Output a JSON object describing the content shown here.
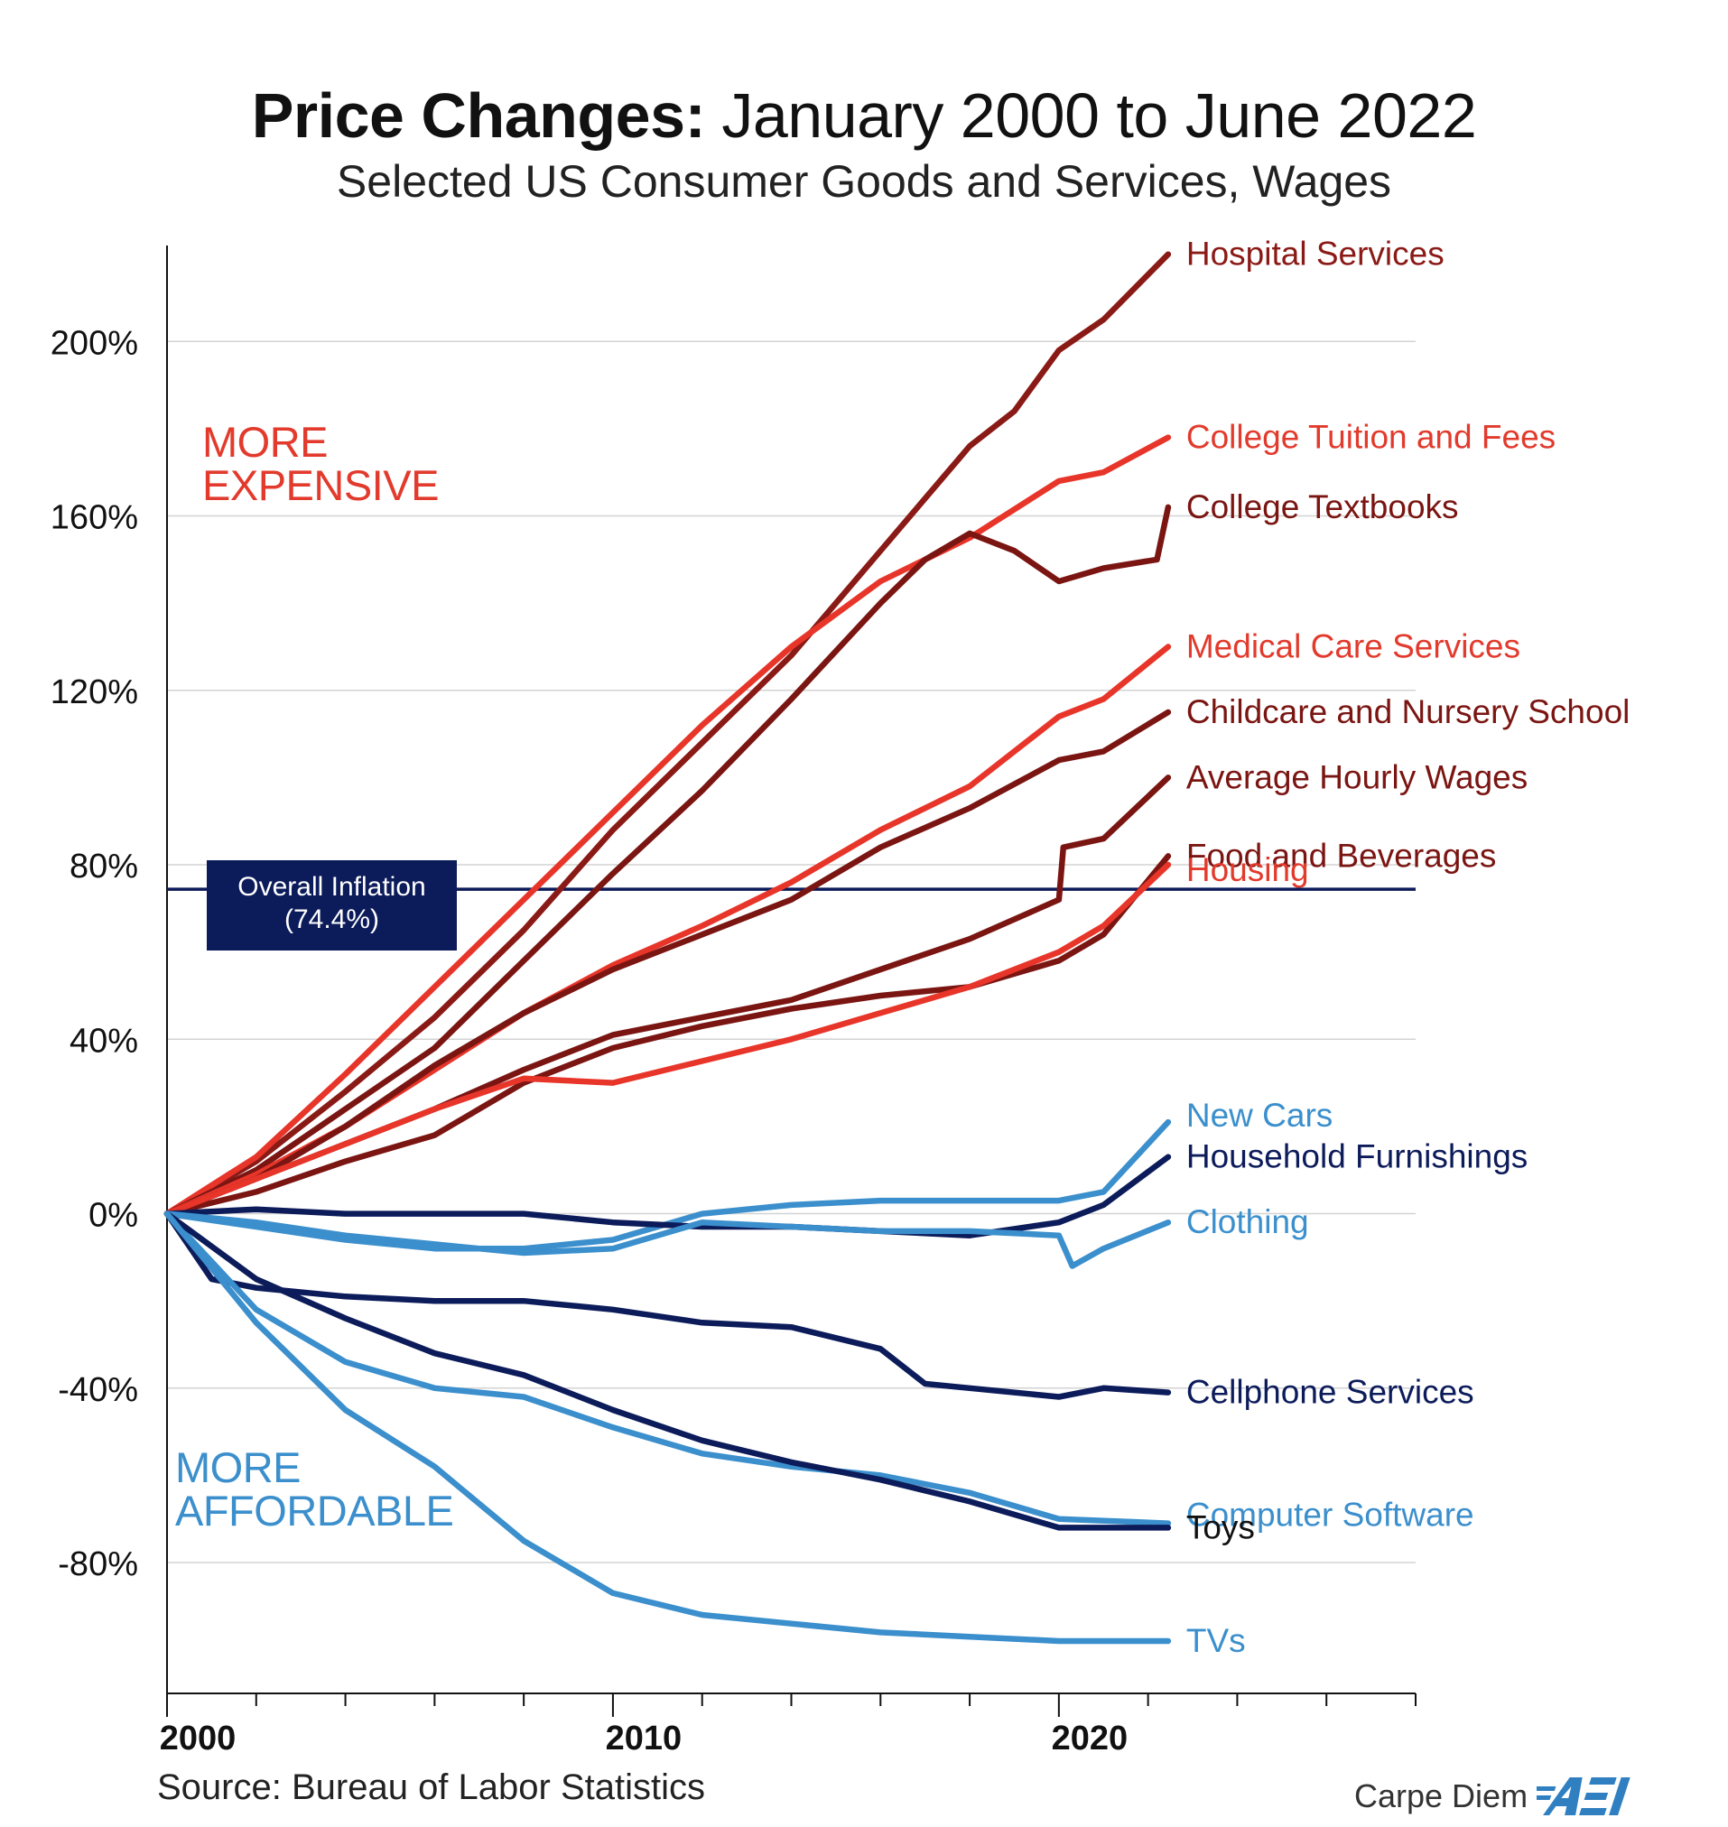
{
  "title_bold": "Price Changes:",
  "title_rest": "January 2000 to June 2022",
  "subtitle": "Selected US Consumer Goods and Services, Wages",
  "source": "Source: Bureau of Labor Statistics",
  "brand": {
    "text": "Carpe Diem",
    "logo_text": "AEI",
    "logo_color": "#2f7fc1"
  },
  "zones": {
    "expensive": [
      "MORE",
      "EXPENSIVE"
    ],
    "affordable": [
      "MORE",
      "AFFORDABLE"
    ]
  },
  "inflation_box": {
    "line1": "Overall Inflation",
    "line2": "(74.4%)",
    "color": "#0c1b5a"
  },
  "chart_data": {
    "type": "line",
    "xlim": [
      2000,
      2028
    ],
    "ylim": [
      -110,
      222
    ],
    "grid": true,
    "x_ticks": [
      2000,
      2010,
      2020
    ],
    "x_minor_ticks": [
      2002,
      2004,
      2006,
      2008,
      2012,
      2014,
      2016,
      2018,
      2022,
      2024,
      2026,
      2028
    ],
    "y_ticks": [
      {
        "value": 200,
        "label": "200%"
      },
      {
        "value": 160,
        "label": "160%"
      },
      {
        "value": 120,
        "label": "120%"
      },
      {
        "value": 80,
        "label": "80%"
      },
      {
        "value": 40,
        "label": "40%"
      },
      {
        "value": 0,
        "label": "0%"
      },
      {
        "value": -40,
        "label": "-40%"
      },
      {
        "value": -80,
        "label": "-80%"
      }
    ],
    "reference_line": {
      "value": 74.4,
      "label": "Overall Inflation (74.4%)"
    },
    "series": [
      {
        "name": "Hospital Services",
        "color": "#8a1a16",
        "label_color": "#8a1a16",
        "label_dy": 0,
        "x": [
          2000,
          2002,
          2004,
          2006,
          2008,
          2010,
          2012,
          2014,
          2016,
          2018,
          2019,
          2020,
          2021,
          2022.45
        ],
        "y": [
          0,
          12,
          28,
          45,
          65,
          88,
          108,
          128,
          152,
          176,
          184,
          198,
          205,
          220
        ]
      },
      {
        "name": "College Tuition and Fees",
        "color": "#e8352a",
        "label_color": "#e23a2c",
        "label_dy": 0,
        "x": [
          2000,
          2002,
          2004,
          2006,
          2008,
          2010,
          2012,
          2014,
          2016,
          2018,
          2020,
          2021,
          2022.45
        ],
        "y": [
          0,
          13,
          32,
          52,
          72,
          92,
          112,
          130,
          145,
          155,
          168,
          170,
          178
        ]
      },
      {
        "name": "College Textbooks",
        "color": "#7a1512",
        "label_color": "#7a1512",
        "label_dy": 0,
        "x": [
          2000,
          2002,
          2004,
          2006,
          2008,
          2010,
          2012,
          2014,
          2016,
          2017,
          2018,
          2019,
          2020,
          2021,
          2022.2,
          2022.45
        ],
        "y": [
          0,
          10,
          24,
          38,
          58,
          78,
          97,
          118,
          140,
          150,
          156,
          152,
          145,
          148,
          150,
          162
        ]
      },
      {
        "name": "Medical Care Services",
        "color": "#e8352a",
        "label_color": "#e23a2c",
        "label_dy": 0,
        "x": [
          2000,
          2002,
          2004,
          2006,
          2008,
          2010,
          2012,
          2014,
          2016,
          2018,
          2020,
          2021,
          2022.45
        ],
        "y": [
          0,
          9,
          20,
          33,
          46,
          57,
          66,
          76,
          88,
          98,
          114,
          118,
          130
        ]
      },
      {
        "name": "Childcare and Nursery School",
        "color": "#7a1512",
        "label_color": "#7a1512",
        "label_dy": 0,
        "x": [
          2000,
          2002,
          2004,
          2006,
          2008,
          2010,
          2012,
          2014,
          2016,
          2018,
          2020,
          2021,
          2022.45
        ],
        "y": [
          0,
          8,
          20,
          34,
          46,
          56,
          64,
          72,
          84,
          93,
          104,
          106,
          115
        ]
      },
      {
        "name": "Average Hourly Wages",
        "color": "#7a1512",
        "label_color": "#7a1512",
        "label_dy": 0,
        "x": [
          2000,
          2002,
          2004,
          2006,
          2008,
          2010,
          2012,
          2014,
          2016,
          2018,
          2020,
          2020.1,
          2021,
          2022.45
        ],
        "y": [
          0,
          8,
          16,
          24,
          33,
          41,
          45,
          49,
          56,
          63,
          72,
          84,
          86,
          100
        ]
      },
      {
        "name": "Food and Beverages",
        "color": "#7a1512",
        "label_color": "#7a1512",
        "label_dy": 0,
        "x": [
          2000,
          2002,
          2004,
          2006,
          2008,
          2010,
          2012,
          2014,
          2016,
          2018,
          2020,
          2021,
          2022.45
        ],
        "y": [
          0,
          5,
          12,
          18,
          30,
          38,
          43,
          47,
          50,
          52,
          58,
          64,
          82
        ]
      },
      {
        "name": "Housing",
        "color": "#e8352a",
        "label_color": "#e23a2c",
        "label_dy": 6,
        "x": [
          2000,
          2002,
          2004,
          2006,
          2008,
          2010,
          2012,
          2014,
          2016,
          2018,
          2020,
          2021,
          2022.45
        ],
        "y": [
          0,
          8,
          16,
          24,
          31,
          30,
          35,
          40,
          46,
          52,
          60,
          66,
          80
        ]
      },
      {
        "name": "New Cars",
        "color": "#3b8fcc",
        "label_color": "#3b8fcc",
        "label_dy": -7,
        "x": [
          2000,
          2002,
          2004,
          2006,
          2008,
          2010,
          2012,
          2014,
          2016,
          2018,
          2020,
          2021,
          2022.45
        ],
        "y": [
          0,
          -3,
          -6,
          -8,
          -8,
          -6,
          0,
          2,
          3,
          3,
          3,
          5,
          21
        ]
      },
      {
        "name": "Household Furnishings",
        "color": "#0c1b5a",
        "label_color": "#0c1b5a",
        "label_dy": 0,
        "x": [
          2000,
          2002,
          2004,
          2006,
          2008,
          2010,
          2012,
          2014,
          2016,
          2018,
          2020,
          2021,
          2022.45
        ],
        "y": [
          0,
          1,
          0,
          0,
          0,
          -2,
          -3,
          -3,
          -4,
          -5,
          -2,
          2,
          13
        ]
      },
      {
        "name": "Clothing",
        "color": "#3b8fcc",
        "label_color": "#3b8fcc",
        "label_dy": 0,
        "x": [
          2000,
          2002,
          2004,
          2006,
          2008,
          2010,
          2012,
          2014,
          2016,
          2018,
          2020,
          2020.3,
          2021,
          2022.45
        ],
        "y": [
          0,
          -2,
          -5,
          -7,
          -9,
          -8,
          -2,
          -3,
          -4,
          -4,
          -5,
          -12,
          -8,
          -2
        ]
      },
      {
        "name": "Cellphone Services",
        "color": "#0c1b5a",
        "label_color": "#0c1b5a",
        "label_dy": 0,
        "x": [
          2000,
          2001,
          2002,
          2004,
          2006,
          2008,
          2010,
          2012,
          2014,
          2016,
          2017,
          2018,
          2020,
          2021,
          2022.45
        ],
        "y": [
          0,
          -15,
          -17,
          -19,
          -20,
          -20,
          -22,
          -25,
          -26,
          -31,
          -39,
          -40,
          -42,
          -40,
          -41
        ]
      },
      {
        "name": "Computer Software",
        "color": "#3b8fcc",
        "label_color": "#3b8fcc",
        "label_dy": -9,
        "x": [
          2000,
          2002,
          2004,
          2006,
          2008,
          2010,
          2012,
          2014,
          2016,
          2018,
          2020,
          2022.45
        ],
        "y": [
          0,
          -22,
          -34,
          -40,
          -42,
          -49,
          -55,
          -58,
          -60,
          -64,
          -70,
          -71
        ]
      },
      {
        "name": "Toys",
        "color": "#0c1b5a",
        "label_color": "#111111",
        "label_dy": 0,
        "x": [
          2000,
          2002,
          2004,
          2006,
          2008,
          2010,
          2012,
          2014,
          2016,
          2018,
          2020,
          2022.45
        ],
        "y": [
          0,
          -15,
          -24,
          -32,
          -37,
          -45,
          -52,
          -57,
          -61,
          -66,
          -72,
          -72
        ]
      },
      {
        "name": "TVs",
        "color": "#3b8fcc",
        "label_color": "#3b8fcc",
        "label_dy": 0,
        "x": [
          2000,
          2002,
          2004,
          2006,
          2008,
          2010,
          2012,
          2014,
          2016,
          2018,
          2020,
          2022.45
        ],
        "y": [
          0,
          -25,
          -45,
          -58,
          -75,
          -87,
          -92,
          -94,
          -96,
          -97,
          -98,
          -98
        ]
      }
    ]
  }
}
